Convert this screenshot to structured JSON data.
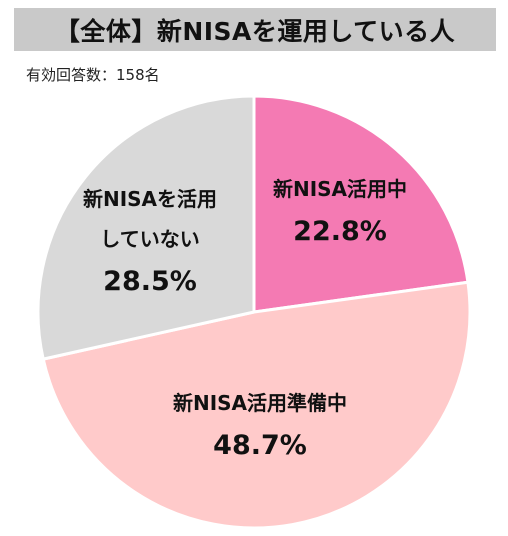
{
  "header": {
    "title": "【全体】新NISAを運用している人",
    "respondents": "有効回答数：158名"
  },
  "chart_data": {
    "type": "pie",
    "title": "【全体】新NISAを運用している人",
    "start_angle_deg": 0,
    "direction": "clockwise",
    "slices": [
      {
        "label_lines": [
          "新NISA活用中"
        ],
        "value": 22.8,
        "value_label": "22.8%",
        "color": "#f47ab3"
      },
      {
        "label_lines": [
          "新NISA活用準備中"
        ],
        "value": 48.7,
        "value_label": "48.7%",
        "color": "#ffcaca"
      },
      {
        "label_lines": [
          "新NISAを活用",
          "していない"
        ],
        "value": 28.5,
        "value_label": "28.5%",
        "color": "#d9d9d9"
      }
    ]
  }
}
